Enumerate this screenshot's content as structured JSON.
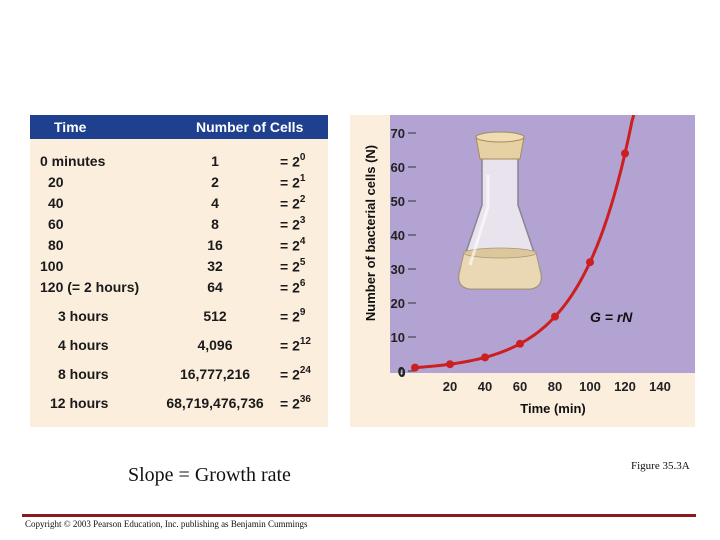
{
  "table": {
    "header_time": "Time",
    "header_cells": "Number of Cells",
    "rows": [
      {
        "time": "0 minutes",
        "cells": "1",
        "base": "= 2",
        "exp": "0"
      },
      {
        "time": "20",
        "cells": "2",
        "base": "= 2",
        "exp": "1"
      },
      {
        "time": "40",
        "cells": "4",
        "base": "= 2",
        "exp": "2"
      },
      {
        "time": "60",
        "cells": "8",
        "base": "= 2",
        "exp": "3"
      },
      {
        "time": "80",
        "cells": "16",
        "base": "= 2",
        "exp": "4"
      },
      {
        "time": "100",
        "cells": "32",
        "base": "= 2",
        "exp": "5"
      },
      {
        "time": "120 (= 2 hours)",
        "cells": "64",
        "base": "= 2",
        "exp": "6"
      },
      {
        "time": "3 hours",
        "cells": "512",
        "base": "= 2",
        "exp": "9"
      },
      {
        "time": "4 hours",
        "cells": "4,096",
        "base": "= 2",
        "exp": "12"
      },
      {
        "time": "8 hours",
        "cells": "16,777,216",
        "base": "= 2",
        "exp": "24"
      },
      {
        "time": "12 hours",
        "cells": "68,719,476,736",
        "base": "= 2",
        "exp": "36"
      }
    ]
  },
  "chart_data": {
    "type": "line",
    "xlabel": "Time (min)",
    "ylabel": "Number of bacterial cells (N)",
    "xlim": [
      0,
      140
    ],
    "ylim": [
      0,
      70
    ],
    "x_ticks": [
      "0",
      "20",
      "40",
      "60",
      "80",
      "100",
      "120",
      "140"
    ],
    "y_ticks": [
      "0",
      "10",
      "20",
      "30",
      "40",
      "50",
      "60",
      "70"
    ],
    "annotation": "G = rN",
    "series": [
      {
        "x": [
          0,
          20,
          40,
          60,
          80,
          100,
          120
        ],
        "y": [
          1,
          2,
          4,
          8,
          16,
          32,
          64
        ],
        "color": "#cc1f1f"
      }
    ],
    "plot_bg": "#b3a3d3",
    "flask_icon": "erlenmeyer-flask-icon"
  },
  "captions": {
    "slope": "Slope = Growth rate",
    "figure": "Figure 35.3A",
    "copyright": "Copyright © 2003 Pearson Education, Inc. publishing as Benjamin Cummings"
  },
  "colors": {
    "header_bg": "#1f3f8f",
    "panel_bg": "#fbeedd",
    "rule": "#8b1a1a"
  }
}
